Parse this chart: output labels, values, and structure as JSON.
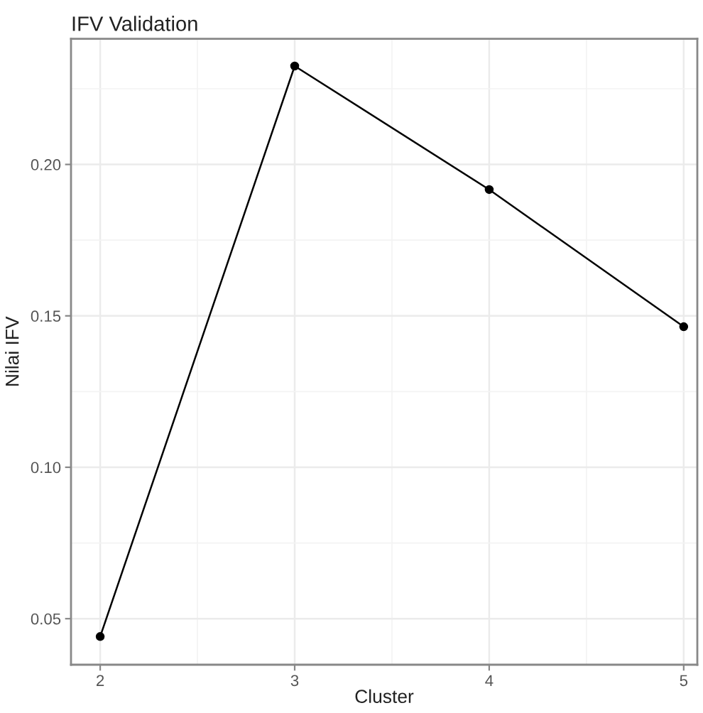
{
  "chart_data": {
    "type": "line",
    "title": "IFV Validation",
    "xlabel": "Cluster",
    "ylabel": "Nilai IFV",
    "x": [
      2,
      3,
      4,
      5
    ],
    "series": [
      {
        "color": "#000000",
        "values": [
          0.0441,
          0.2325,
          0.1917,
          0.1464
        ]
      }
    ],
    "xlim": [
      1.85,
      5.07
    ],
    "xticks": [
      2,
      3,
      4,
      5
    ],
    "ylim": [
      0.0348,
      0.2415
    ],
    "yticks": [
      {
        "value": 0.05,
        "label": "0.05"
      },
      {
        "value": 0.1,
        "label": "0.10"
      },
      {
        "value": 0.15,
        "label": "0.15"
      },
      {
        "value": 0.2,
        "label": "0.20"
      }
    ],
    "grid": true,
    "marker": "circle",
    "line_style": "solid"
  }
}
